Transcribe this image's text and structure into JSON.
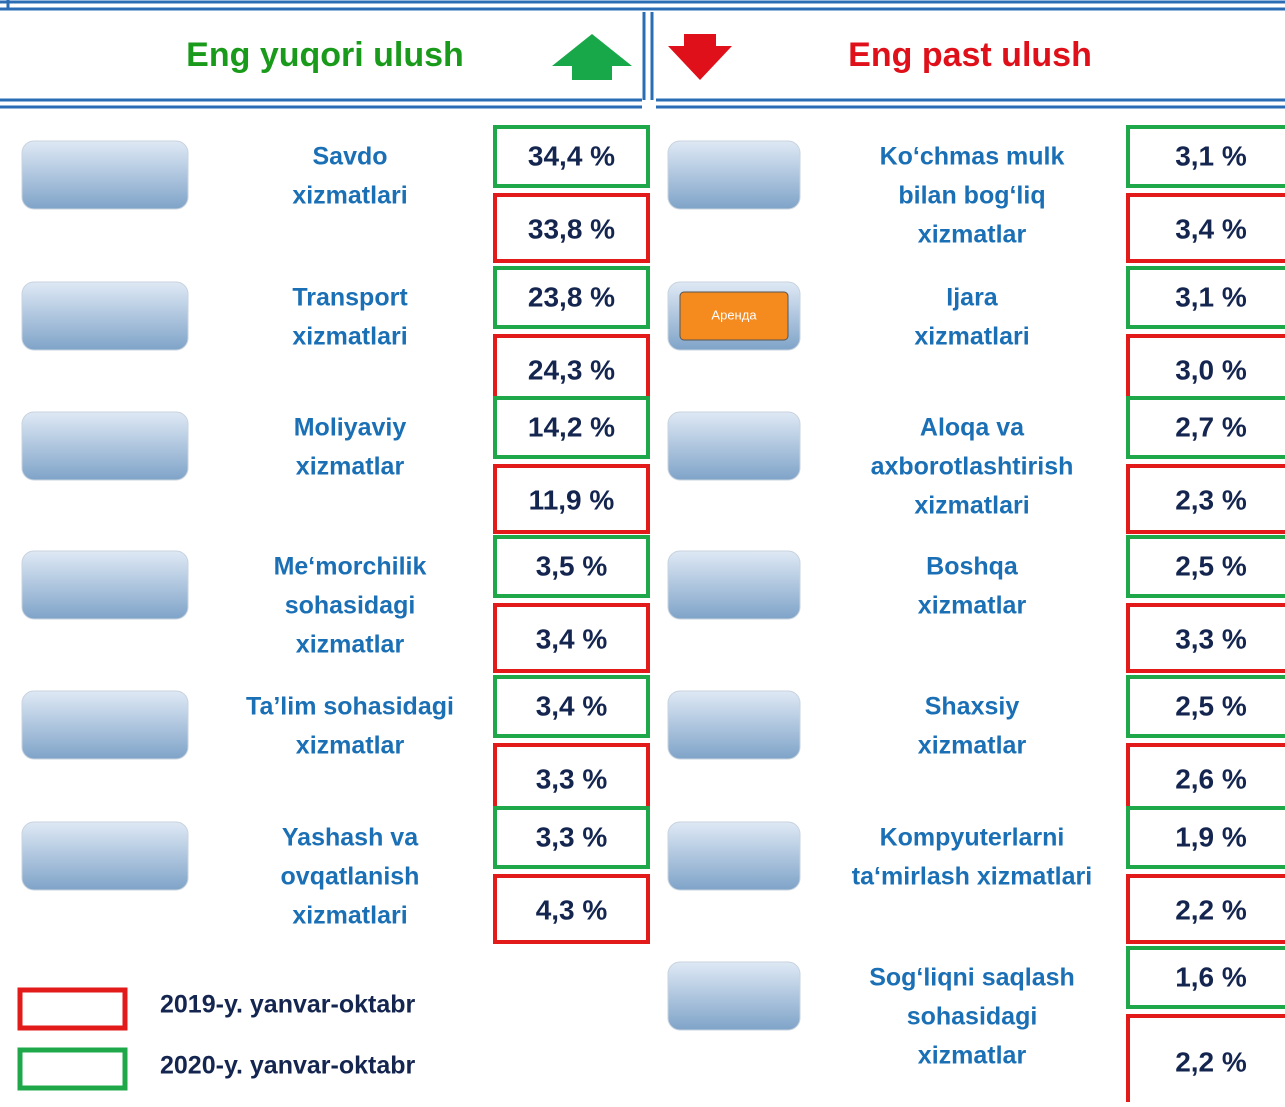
{
  "header": {
    "left_title": "Eng yuqori ulush",
    "right_title": "Eng past ulush"
  },
  "left": [
    {
      "lines": [
        "Savdo",
        "xizmatlari"
      ],
      "value_2020": "34,4 %",
      "value_2019": "33,8 %"
    },
    {
      "lines": [
        "Transport",
        "xizmatlari"
      ],
      "value_2020": "23,8 %",
      "value_2019": "24,3 %"
    },
    {
      "lines": [
        "Moliyaviy",
        "xizmatlar"
      ],
      "value_2020": "14,2 %",
      "value_2019": "11,9 %"
    },
    {
      "lines": [
        "Me‘morchilik",
        "sohasidagi",
        "xizmatlar"
      ],
      "value_2020": "3,5 %",
      "value_2019": "3,4 %"
    },
    {
      "lines": [
        "Ta’lim sohasidagi",
        "xizmatlar"
      ],
      "value_2020": "3,4 %",
      "value_2019": "3,3 %"
    },
    {
      "lines": [
        "Yashash va",
        "ovqatlanish",
        "xizmatlari"
      ],
      "value_2020": "3,3 %",
      "value_2019": "4,3 %"
    }
  ],
  "right": [
    {
      "lines": [
        "Ko‘chmas mulk",
        "bilan bog‘liq",
        "xizmatlar"
      ],
      "value_2020": "3,1 %",
      "value_2019": "3,4 %"
    },
    {
      "lines": [
        "Ijara",
        "xizmatlari"
      ],
      "value_2020": "3,1 %",
      "value_2019": "3,0 %",
      "icon_text": "Аренда"
    },
    {
      "lines": [
        "Aloqa va",
        "axborotlashtirish",
        "xizmatlari"
      ],
      "value_2020": "2,7 %",
      "value_2019": "2,3 %"
    },
    {
      "lines": [
        "Boshqa",
        "xizmatlar"
      ],
      "value_2020": "2,5 %",
      "value_2019": "3,3 %"
    },
    {
      "lines": [
        "Shaxsiy",
        "xizmatlar"
      ],
      "value_2020": "2,5 %",
      "value_2019": "2,6 %"
    },
    {
      "lines": [
        "Kompyuterlarni",
        "ta‘mirlash xizmatlari"
      ],
      "value_2020": "1,9 %",
      "value_2019": "2,2 %"
    },
    {
      "lines": [
        "Sog‘liqni saqlash",
        "sohasidagi",
        "xizmatlar"
      ],
      "value_2020": "1,6 %",
      "value_2019": "2,2 %"
    }
  ],
  "legend": {
    "red": "2019-y. yanvar-oktabr",
    "green": "2020-y. yanvar-oktabr"
  }
}
